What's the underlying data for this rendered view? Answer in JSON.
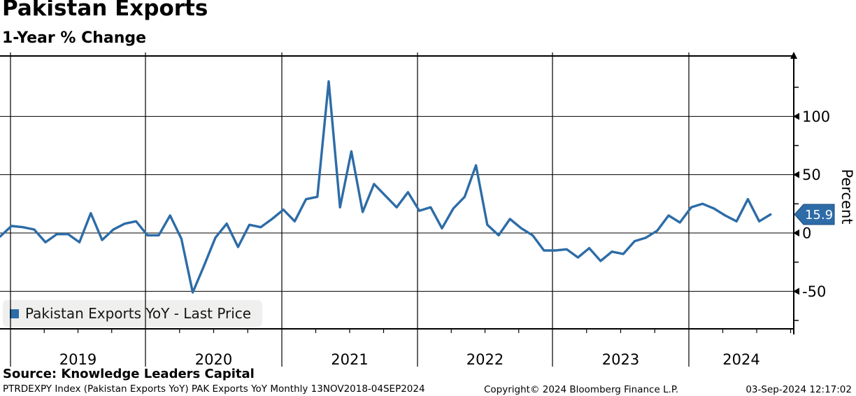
{
  "header": {
    "title": "Pakistan Exports",
    "subtitle": "1-Year % Change"
  },
  "legend": {
    "label": "Pakistan Exports YoY - Last Price",
    "marker_color": "#2d6ca7"
  },
  "last_price_badge": {
    "value": "15.9",
    "bg_color": "#2d6ca7",
    "text_color": "#ffffff"
  },
  "footer": {
    "source": "Source: Knowledge Leaders Capital",
    "ticker_line": "PTRDEXPY Index (Pakistan Exports YoY) PAK Exports YoY  Monthly 13NOV2018-04SEP2024",
    "copyright": "Copyright© 2024 Bloomberg Finance L.P.",
    "timestamp": "03-Sep-2024 12:17:02"
  },
  "chart_data": {
    "type": "line",
    "title": "Pakistan Exports",
    "subtitle": "1-Year % Change",
    "ylabel": "Percent",
    "line_color": "#2d6ca7",
    "grid": true,
    "legend_position": "bottom-left",
    "ylim": [
      -82,
      152
    ],
    "yticks_major": [
      100,
      50,
      0,
      -50
    ],
    "yticks_minor": [
      125,
      75,
      25,
      -25,
      -75
    ],
    "x_year_labels": [
      "2019",
      "2020",
      "2021",
      "2022",
      "2023",
      "2024"
    ],
    "frequency": "monthly",
    "x": [
      "Nov-2018",
      "Dec-2018",
      "Jan-2019",
      "Feb-2019",
      "Mar-2019",
      "Apr-2019",
      "May-2019",
      "Jun-2019",
      "Jul-2019",
      "Aug-2019",
      "Sep-2019",
      "Oct-2019",
      "Nov-2019",
      "Dec-2019",
      "Jan-2020",
      "Feb-2020",
      "Mar-2020",
      "Apr-2020",
      "May-2020",
      "Jun-2020",
      "Jul-2020",
      "Aug-2020",
      "Sep-2020",
      "Oct-2020",
      "Nov-2020",
      "Dec-2020",
      "Jan-2021",
      "Feb-2021",
      "Mar-2021",
      "Apr-2021",
      "May-2021",
      "Jun-2021",
      "Jul-2021",
      "Aug-2021",
      "Sep-2021",
      "Oct-2021",
      "Nov-2021",
      "Dec-2021",
      "Jan-2022",
      "Feb-2022",
      "Mar-2022",
      "Apr-2022",
      "May-2022",
      "Jun-2022",
      "Jul-2022",
      "Aug-2022",
      "Sep-2022",
      "Oct-2022",
      "Nov-2022",
      "Dec-2022",
      "Jan-2023",
      "Feb-2023",
      "Mar-2023",
      "Apr-2023",
      "May-2023",
      "Jun-2023",
      "Jul-2023",
      "Aug-2023",
      "Sep-2023",
      "Oct-2023",
      "Nov-2023",
      "Dec-2023",
      "Jan-2024",
      "Feb-2024",
      "Mar-2024",
      "Apr-2024",
      "May-2024",
      "Jun-2024",
      "Jul-2024",
      "Aug-2024"
    ],
    "values": [
      -8,
      -3,
      6,
      5,
      3,
      -8,
      -1,
      -1,
      -8,
      17,
      -6,
      3,
      8,
      10,
      -2,
      -2,
      15,
      -5,
      -51,
      -28,
      -4,
      8,
      -12,
      7,
      5,
      12,
      20,
      10,
      29,
      31,
      130,
      22,
      70,
      18,
      42,
      32,
      22,
      35,
      19,
      22,
      4,
      21,
      31,
      58,
      7,
      -2,
      12,
      4,
      -2,
      -15,
      -15,
      -14,
      -21,
      -13,
      -24,
      -16,
      -18,
      -7,
      -4,
      2,
      15,
      9,
      22,
      25,
      21,
      15,
      10,
      29,
      10,
      15.9
    ],
    "last_value": 15.9,
    "series_name": "Pakistan Exports YoY - Last Price"
  }
}
